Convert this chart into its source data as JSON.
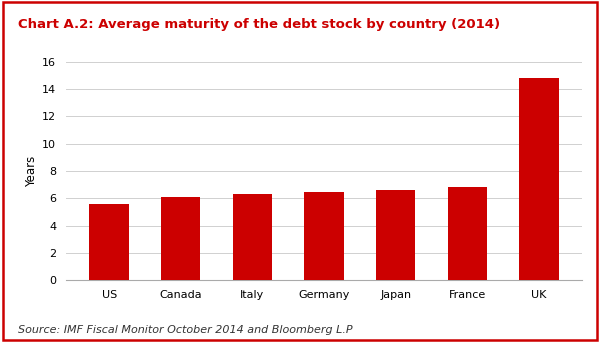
{
  "title": "Chart A.2: Average maturity of the debt stock by country (2014)",
  "categories": [
    "US",
    "Canada",
    "Italy",
    "Germany",
    "Japan",
    "France",
    "UK"
  ],
  "values": [
    5.6,
    6.1,
    6.3,
    6.5,
    6.6,
    6.8,
    14.8
  ],
  "bar_color": "#cc0000",
  "ylabel": "Years",
  "ylim": [
    0,
    16
  ],
  "yticks": [
    0,
    2,
    4,
    6,
    8,
    10,
    12,
    14,
    16
  ],
  "source": "Source: IMF Fiscal Monitor October 2014 and Bloomberg L.P",
  "title_color": "#cc0000",
  "title_fontsize": 9.5,
  "source_fontsize": 8.0,
  "ylabel_fontsize": 8.5,
  "tick_fontsize": 8.0,
  "background_color": "#ffffff",
  "border_color": "#cc0000",
  "grid_color": "#d0d0d0"
}
